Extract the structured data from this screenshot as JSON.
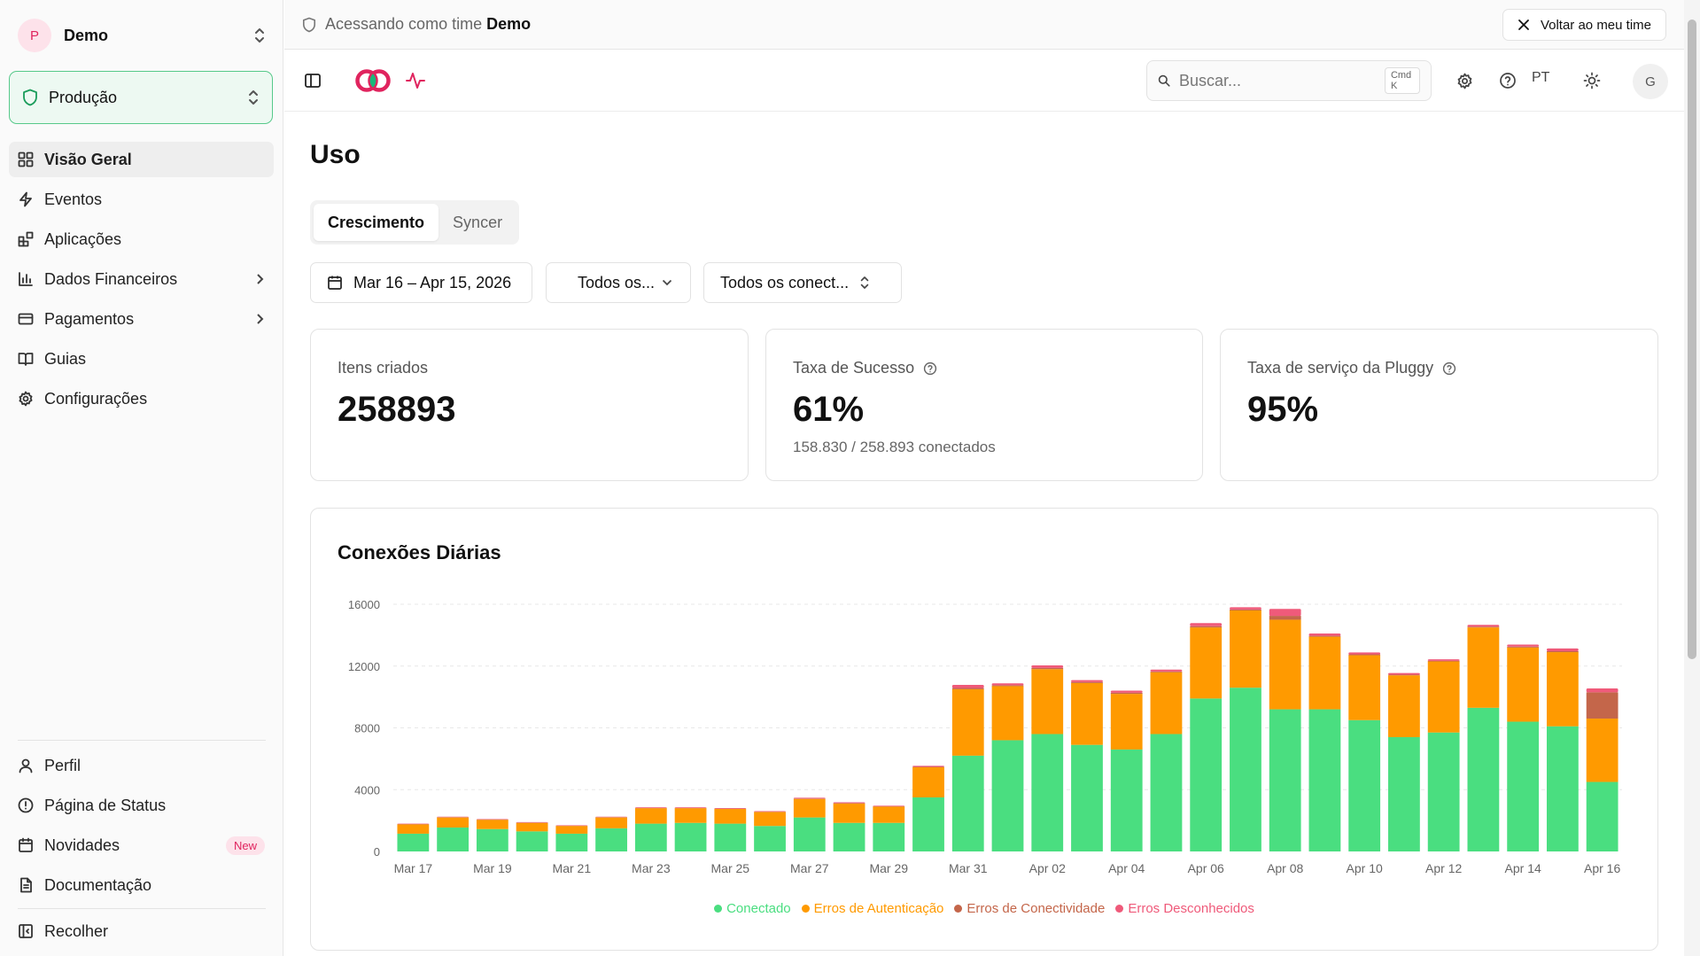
{
  "sidebar": {
    "team": {
      "initial": "P",
      "name": "Demo"
    },
    "environment": "Produção",
    "nav": [
      {
        "label": "Visão Geral",
        "icon": "grid-icon",
        "active": true
      },
      {
        "label": "Eventos",
        "icon": "zap-icon"
      },
      {
        "label": "Aplicações",
        "icon": "apps-icon"
      },
      {
        "label": "Dados Financeiros",
        "icon": "bar-chart-icon",
        "has_submenu": true
      },
      {
        "label": "Pagamentos",
        "icon": "credit-card-icon",
        "has_submenu": true
      },
      {
        "label": "Guias",
        "icon": "book-icon"
      },
      {
        "label": "Configurações",
        "icon": "gear-icon"
      }
    ],
    "bottom_nav": [
      {
        "label": "Perfil",
        "icon": "user-icon"
      },
      {
        "label": "Página de Status",
        "icon": "alert-circle-icon"
      },
      {
        "label": "Novidades",
        "icon": "calendar-icon",
        "badge": "New"
      },
      {
        "label": "Documentação",
        "icon": "file-text-icon"
      }
    ],
    "collapse_label": "Recolher"
  },
  "access_bar": {
    "prefix": "Acessando como time",
    "team": "Demo",
    "back_button": "Voltar ao meu time"
  },
  "toolbar": {
    "search_placeholder": "Buscar...",
    "search_shortcut": "Cmd K",
    "language": "PT",
    "user_initial": "G"
  },
  "page": {
    "title": "Uso",
    "tabs": [
      {
        "label": "Crescimento",
        "active": true
      },
      {
        "label": "Syncer",
        "active": false
      }
    ],
    "filters": {
      "date_range": "Mar 16 – Apr 15, 2026",
      "status": "Todos os...",
      "connector": "Todos os conect..."
    }
  },
  "metrics": {
    "items_created": {
      "label": "Itens criados",
      "value": "258893"
    },
    "success_rate": {
      "label": "Taxa de Sucesso",
      "value": "61%",
      "sub": "158.830 / 258.893 conectados"
    },
    "service_rate": {
      "label": "Taxa de serviço da Pluggy",
      "value": "95%"
    }
  },
  "chart_data": {
    "type": "bar",
    "stacked": true,
    "title": "Conexões Diárias",
    "categories": [
      "Mar 17",
      "Mar 18",
      "Mar 19",
      "Mar 20",
      "Mar 21",
      "Mar 22",
      "Mar 23",
      "Mar 24",
      "Mar 25",
      "Mar 26",
      "Mar 27",
      "Mar 28",
      "Mar 29",
      "Mar 30",
      "Mar 31",
      "Apr 01",
      "Apr 02",
      "Apr 03",
      "Apr 04",
      "Apr 05",
      "Apr 06",
      "Apr 07",
      "Apr 08",
      "Apr 09",
      "Apr 10",
      "Apr 11",
      "Apr 12",
      "Apr 13",
      "Apr 14",
      "Apr 15",
      "Apr 16"
    ],
    "tick_labels": [
      "Mar 17",
      "Mar 19",
      "Mar 21",
      "Mar 23",
      "Mar 25",
      "Mar 27",
      "Mar 29",
      "Mar 31",
      "Apr 02",
      "Apr 04",
      "Apr 06",
      "Apr 08",
      "Apr 10",
      "Apr 12",
      "Apr 14",
      "Apr 16"
    ],
    "y_ticks": [
      0,
      4000,
      8000,
      12000,
      16000
    ],
    "ylim": [
      0,
      16000
    ],
    "grid": true,
    "legend_position": "bottom",
    "series": [
      {
        "name": "Conectado",
        "color": "#4ade80",
        "values": [
          1150,
          1550,
          1450,
          1300,
          1150,
          1500,
          1800,
          1850,
          1800,
          1650,
          2200,
          1850,
          1850,
          3500,
          6200,
          7200,
          7600,
          6900,
          6600,
          7600,
          9900,
          10600,
          9200,
          9200,
          8500,
          7400,
          7700,
          9300,
          8400,
          8100,
          4500
        ]
      },
      {
        "name": "Erros de Autenticação",
        "color": "#ff9a00",
        "values": [
          600,
          650,
          600,
          550,
          500,
          700,
          1000,
          950,
          950,
          900,
          1200,
          1250,
          1050,
          1950,
          4300,
          3500,
          4200,
          4000,
          3600,
          4000,
          4600,
          5000,
          5800,
          4700,
          4200,
          4000,
          4600,
          5200,
          4800,
          4800,
          4100
        ]
      },
      {
        "name": "Erros de Conectividade",
        "color": "#c4664a",
        "values": [
          20,
          20,
          20,
          20,
          20,
          20,
          20,
          20,
          20,
          20,
          30,
          30,
          20,
          30,
          80,
          60,
          80,
          70,
          70,
          50,
          80,
          60,
          250,
          60,
          60,
          40,
          40,
          50,
          60,
          60,
          1700
        ]
      },
      {
        "name": "Erros Desconhecidos",
        "color": "#ef5a7a",
        "values": [
          30,
          30,
          30,
          30,
          30,
          30,
          40,
          40,
          40,
          40,
          50,
          50,
          40,
          60,
          200,
          120,
          160,
          120,
          140,
          120,
          200,
          150,
          450,
          150,
          120,
          110,
          100,
          120,
          130,
          180,
          250
        ]
      }
    ]
  }
}
